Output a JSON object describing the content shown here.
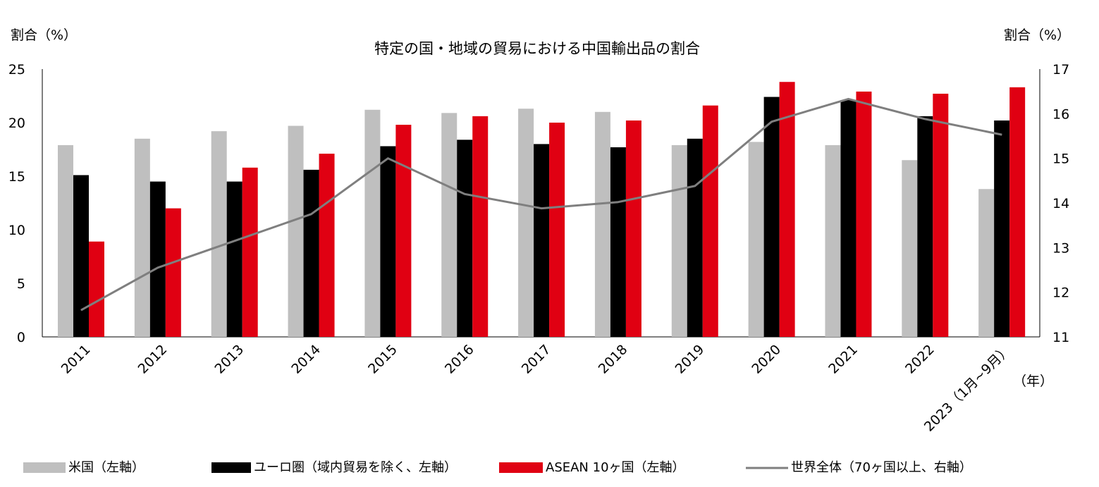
{
  "chart_data": {
    "type": "bar",
    "title": "特定の国・地域の貿易における中国輸出品の割合",
    "ylabel_left": "割合（%）",
    "ylabel_right": "割合（%）",
    "xlabel": "（年）",
    "ylim_left": [
      0,
      25
    ],
    "yticks_left": [
      "0",
      "5",
      "10",
      "15",
      "20",
      "25"
    ],
    "ylim_right": [
      11,
      17
    ],
    "yticks_right": [
      "11",
      "12",
      "13",
      "14",
      "15",
      "16",
      "17"
    ],
    "grid": false,
    "legend_position": "bottom",
    "categories": [
      "2011",
      "2012",
      "2013",
      "2014",
      "2015",
      "2016",
      "2017",
      "2018",
      "2019",
      "2020",
      "2021",
      "2022",
      "2023（1月~9月）"
    ],
    "series": [
      {
        "name": "米国（左軸）",
        "type": "bar",
        "axis": "left",
        "color": "#bfbfbf",
        "values": [
          17.9,
          18.5,
          19.2,
          19.7,
          21.2,
          20.9,
          21.3,
          21.0,
          17.9,
          18.2,
          17.9,
          16.5,
          13.8
        ]
      },
      {
        "name": "ユーロ圏（域内貿易を除く、左軸）",
        "type": "bar",
        "axis": "left",
        "color": "#000000",
        "values": [
          15.1,
          14.5,
          14.5,
          15.6,
          17.8,
          18.4,
          18.0,
          17.7,
          18.5,
          22.4,
          22.1,
          20.6,
          20.2
        ]
      },
      {
        "name": "ASEAN 10ヶ国（左軸）",
        "type": "bar",
        "axis": "left",
        "color": "#e00012",
        "values": [
          8.9,
          12.0,
          15.8,
          17.1,
          19.8,
          20.6,
          20.0,
          20.2,
          21.6,
          23.8,
          22.9,
          22.7,
          23.3
        ]
      },
      {
        "name": "世界全体（70ヶ国以上、右軸）",
        "type": "line",
        "axis": "right",
        "color": "#7f7f7f",
        "values": [
          11.6,
          12.55,
          13.15,
          13.75,
          15.0,
          14.2,
          13.88,
          14.02,
          14.38,
          15.82,
          16.33,
          15.88,
          15.53
        ]
      }
    ]
  }
}
